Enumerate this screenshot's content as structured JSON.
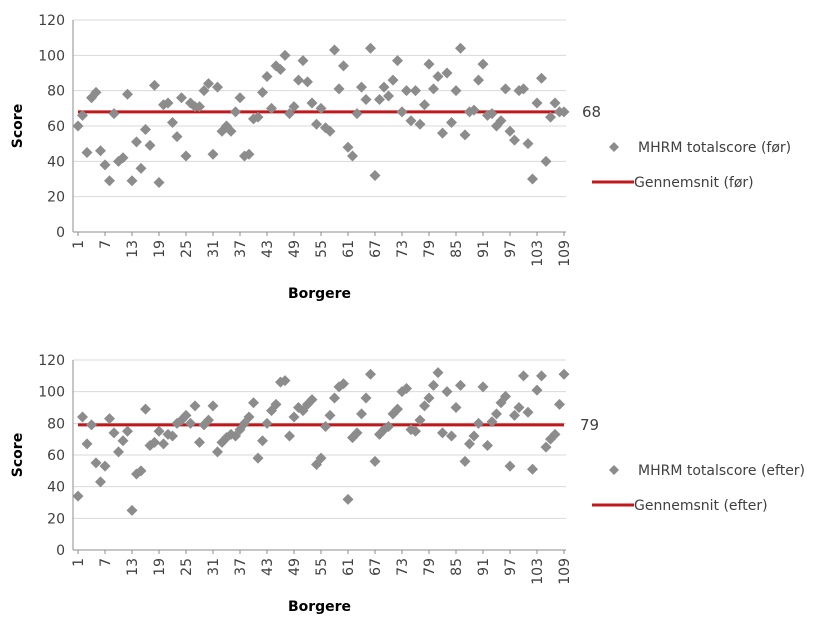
{
  "chart_data": [
    {
      "type": "scatter",
      "xlabel": "Borgere",
      "ylabel": "Score",
      "ylim": [
        0,
        120
      ],
      "yticks": [
        0,
        20,
        40,
        60,
        80,
        100,
        120
      ],
      "xlim": [
        1,
        109
      ],
      "xticks": [
        1,
        7,
        13,
        19,
        25,
        31,
        37,
        43,
        49,
        55,
        61,
        67,
        73,
        79,
        85,
        91,
        97,
        103,
        109
      ],
      "grid": "horizontal",
      "legend_position": "right",
      "mean_label": "68",
      "colors": {
        "marker": "#8c8c8c",
        "mean_line": "#c0191c",
        "grid": "#d9d9d9"
      },
      "series": [
        {
          "name": "MHRM totalscore (før)",
          "marker": "diamond",
          "x": [
            1,
            2,
            3,
            4,
            5,
            6,
            7,
            8,
            9,
            10,
            11,
            12,
            13,
            14,
            15,
            16,
            17,
            18,
            19,
            20,
            21,
            22,
            23,
            24,
            25,
            26,
            27,
            28,
            29,
            30,
            31,
            32,
            33,
            34,
            35,
            36,
            37,
            38,
            39,
            40,
            41,
            42,
            43,
            44,
            45,
            46,
            47,
            48,
            49,
            50,
            51,
            52,
            53,
            54,
            55,
            56,
            57,
            58,
            59,
            60,
            61,
            62,
            63,
            64,
            65,
            66,
            67,
            68,
            69,
            70,
            71,
            72,
            73,
            74,
            75,
            76,
            77,
            78,
            79,
            80,
            81,
            82,
            83,
            84,
            85,
            86,
            87,
            88,
            89,
            90,
            91,
            92,
            93,
            94,
            95,
            96,
            97,
            98,
            99,
            100,
            101,
            102,
            103,
            104,
            105,
            106,
            107,
            108,
            109
          ],
          "y": [
            60,
            66,
            45,
            76,
            79,
            46,
            38,
            29,
            67,
            40,
            42,
            78,
            29,
            51,
            36,
            58,
            49,
            83,
            28,
            72,
            73,
            62,
            54,
            76,
            43,
            73,
            71,
            71,
            80,
            84,
            44,
            82,
            57,
            60,
            57,
            68,
            76,
            43,
            44,
            64,
            65,
            79,
            88,
            70,
            94,
            92,
            100,
            67,
            71,
            86,
            97,
            85,
            73,
            61,
            70,
            59,
            57,
            103,
            81,
            94,
            48,
            43,
            67,
            82,
            75,
            104,
            32,
            75,
            82,
            77,
            86,
            97,
            68,
            80,
            63,
            80,
            61,
            72,
            95,
            81,
            88,
            56,
            90,
            62,
            80,
            104,
            55,
            68,
            69,
            86,
            95,
            66,
            67,
            60,
            63,
            81,
            57,
            52,
            80,
            81,
            50,
            30,
            73,
            87,
            40,
            65,
            73,
            68,
            68
          ]
        },
        {
          "name": "Gennemsnit (før)",
          "type": "line",
          "x": [
            1,
            109
          ],
          "y": [
            68,
            68
          ]
        }
      ]
    },
    {
      "type": "scatter",
      "xlabel": "Borgere",
      "ylabel": "Score",
      "ylim": [
        0,
        120
      ],
      "yticks": [
        0,
        20,
        40,
        60,
        80,
        100,
        120
      ],
      "xlim": [
        1,
        109
      ],
      "xticks": [
        1,
        7,
        13,
        19,
        25,
        31,
        37,
        43,
        49,
        55,
        61,
        67,
        73,
        79,
        85,
        91,
        97,
        103,
        109
      ],
      "grid": "horizontal",
      "legend_position": "right",
      "mean_label": "79",
      "colors": {
        "marker": "#8c8c8c",
        "mean_line": "#c0191c",
        "grid": "#d9d9d9"
      },
      "series": [
        {
          "name": "MHRM totalscore (efter)",
          "marker": "diamond",
          "x": [
            1,
            2,
            3,
            4,
            5,
            6,
            7,
            8,
            9,
            10,
            11,
            12,
            13,
            14,
            15,
            16,
            17,
            18,
            19,
            20,
            21,
            22,
            23,
            24,
            25,
            26,
            27,
            28,
            29,
            30,
            31,
            32,
            33,
            34,
            35,
            36,
            37,
            38,
            39,
            40,
            41,
            42,
            43,
            44,
            45,
            46,
            47,
            48,
            49,
            50,
            51,
            52,
            53,
            54,
            55,
            56,
            57,
            58,
            59,
            60,
            61,
            62,
            63,
            64,
            65,
            66,
            67,
            68,
            69,
            70,
            71,
            72,
            73,
            74,
            75,
            76,
            77,
            78,
            79,
            80,
            81,
            82,
            83,
            84,
            85,
            86,
            87,
            88,
            89,
            90,
            91,
            92,
            93,
            94,
            95,
            96,
            97,
            98,
            99,
            100,
            101,
            102,
            103,
            104,
            105,
            106,
            107,
            108,
            109
          ],
          "y": [
            34,
            84,
            67,
            79,
            55,
            43,
            53,
            83,
            74,
            62,
            69,
            75,
            25,
            48,
            50,
            89,
            66,
            68,
            75,
            67,
            73,
            72,
            80,
            82,
            85,
            80,
            91,
            68,
            79,
            82,
            91,
            62,
            68,
            71,
            73,
            72,
            76,
            80,
            84,
            93,
            58,
            69,
            80,
            88,
            92,
            106,
            107,
            72,
            84,
            90,
            88,
            92,
            95,
            54,
            58,
            78,
            85,
            96,
            103,
            105,
            32,
            71,
            74,
            86,
            96,
            111,
            56,
            73,
            76,
            78,
            86,
            89,
            100,
            102,
            76,
            75,
            82,
            91,
            96,
            104,
            112,
            74,
            100,
            72,
            90,
            104,
            56,
            67,
            72,
            80,
            103,
            66,
            81,
            86,
            93,
            97,
            53,
            85,
            90,
            110,
            87,
            51,
            101,
            110,
            65,
            70,
            73,
            92,
            111
          ]
        },
        {
          "name": "Gennemsnit (efter)",
          "type": "line",
          "x": [
            1,
            109
          ],
          "y": [
            79,
            79
          ]
        }
      ]
    }
  ]
}
